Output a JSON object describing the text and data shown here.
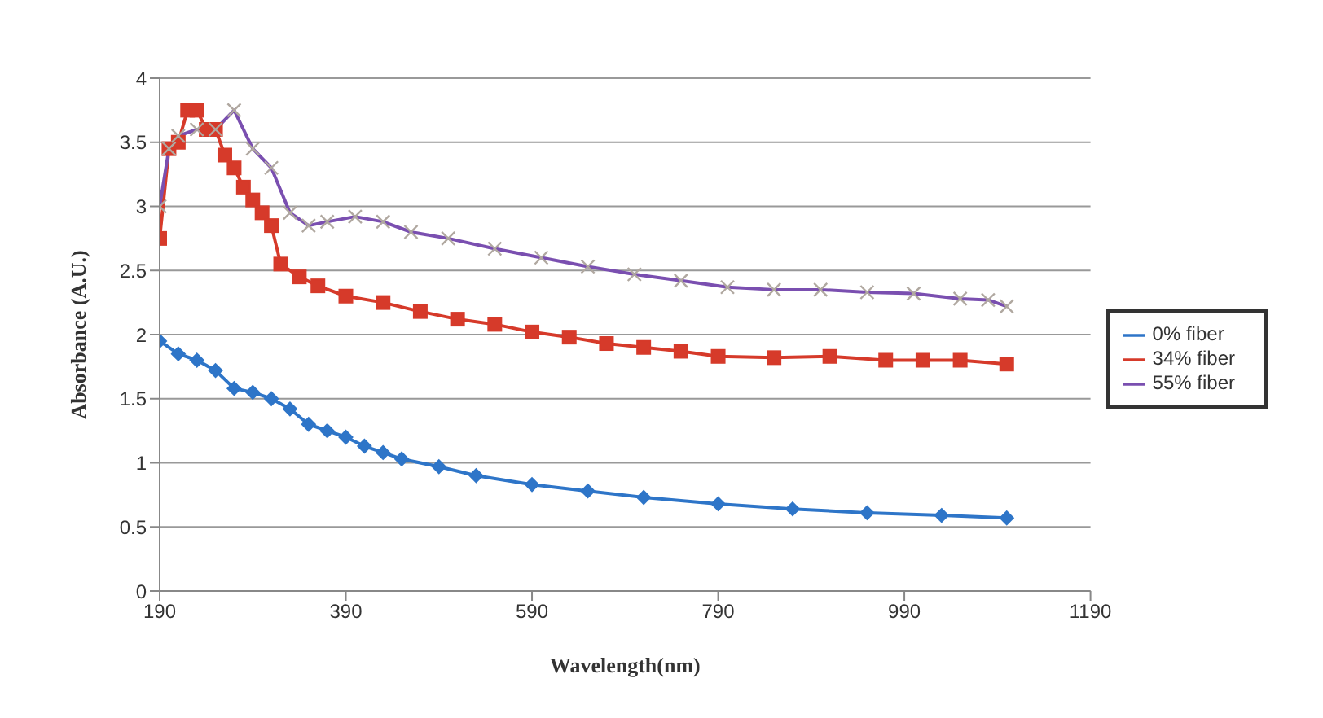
{
  "chart_data": {
    "type": "line",
    "xlabel": "Wavelength(nm)",
    "ylabel": "Absorbance (A.U.)",
    "xlim": [
      190,
      1190
    ],
    "xticks": [
      190,
      390,
      590,
      790,
      990,
      1190
    ],
    "ylim": [
      0,
      4
    ],
    "yticks": [
      0,
      0.5,
      1,
      1.5,
      2,
      2.5,
      3,
      3.5,
      4
    ],
    "grid": "y",
    "legend": "right",
    "series": [
      {
        "name": "0% fiber",
        "color": "#2e75c8",
        "marker": "diamond",
        "x": [
          190,
          210,
          230,
          250,
          270,
          290,
          310,
          330,
          350,
          370,
          390,
          410,
          430,
          450,
          490,
          530,
          590,
          650,
          710,
          790,
          870,
          950,
          1030,
          1100
        ],
        "values": [
          1.95,
          1.85,
          1.8,
          1.72,
          1.58,
          1.55,
          1.5,
          1.42,
          1.3,
          1.25,
          1.2,
          1.13,
          1.08,
          1.03,
          0.97,
          0.9,
          0.83,
          0.78,
          0.73,
          0.68,
          0.64,
          0.61,
          0.59,
          0.57
        ]
      },
      {
        "name": "34% fiber",
        "color": "#d63a2a",
        "marker": "square",
        "x": [
          190,
          200,
          210,
          220,
          230,
          240,
          250,
          260,
          270,
          280,
          290,
          300,
          310,
          320,
          340,
          360,
          390,
          430,
          470,
          510,
          550,
          590,
          630,
          670,
          710,
          750,
          790,
          850,
          910,
          970,
          1010,
          1050,
          1100
        ],
        "values": [
          2.75,
          3.45,
          3.5,
          3.75,
          3.75,
          3.6,
          3.6,
          3.4,
          3.3,
          3.15,
          3.05,
          2.95,
          2.85,
          2.55,
          2.45,
          2.38,
          2.3,
          2.25,
          2.18,
          2.12,
          2.08,
          2.02,
          1.98,
          1.93,
          1.9,
          1.87,
          1.83,
          1.82,
          1.83,
          1.8,
          1.8,
          1.8,
          1.77
        ]
      },
      {
        "name": "55% fiber",
        "color": "#7a4fb0",
        "marker": "cross",
        "x": [
          190,
          200,
          210,
          230,
          250,
          270,
          290,
          310,
          330,
          350,
          370,
          400,
          430,
          460,
          500,
          550,
          600,
          650,
          700,
          750,
          800,
          850,
          900,
          950,
          1000,
          1050,
          1080,
          1100
        ],
        "values": [
          3.0,
          3.45,
          3.55,
          3.6,
          3.6,
          3.75,
          3.45,
          3.3,
          2.95,
          2.85,
          2.88,
          2.92,
          2.88,
          2.8,
          2.75,
          2.67,
          2.6,
          2.53,
          2.47,
          2.42,
          2.37,
          2.35,
          2.35,
          2.33,
          2.32,
          2.28,
          2.27,
          2.22
        ]
      }
    ]
  }
}
